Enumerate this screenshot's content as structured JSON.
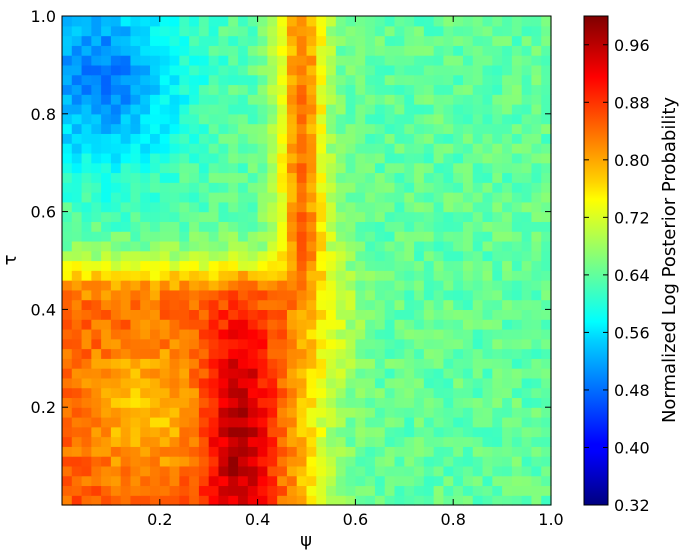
{
  "chart_data": {
    "type": "heatmap",
    "title": "",
    "xlabel": "ψ",
    "ylabel": "τ",
    "xlim": [
      0.0,
      1.0
    ],
    "ylim": [
      0.0,
      1.0
    ],
    "x_ticks": [
      "0.2",
      "0.4",
      "0.6",
      "0.8",
      "1.0"
    ],
    "y_ticks": [
      "0.2",
      "0.4",
      "0.6",
      "0.8",
      "1.0"
    ],
    "grid": false,
    "colormap": "jet",
    "colorbar": {
      "label": "Normalized Log Posterior Probability",
      "range": [
        0.32,
        1.0
      ],
      "ticks": [
        "0.32",
        "0.40",
        "0.48",
        "0.56",
        "0.64",
        "0.72",
        "0.80",
        "0.88",
        "0.96"
      ]
    },
    "grid_resolution": [
      50,
      50
    ],
    "features": [
      {
        "region": "psi 0.0-0.5, tau 0.0-0.48",
        "approx_value": 0.88
      },
      {
        "region": "psi 0.30-0.42, tau 0.0-0.35 (peak)",
        "approx_value": 1.0
      },
      {
        "region": "psi 0.43-0.55, tau 0.45-1.0 (ridge)",
        "approx_value": 0.82
      },
      {
        "region": "psi 0.0-0.2, tau 0.65-1.0",
        "approx_value": 0.5
      },
      {
        "region": "psi 0.6-1.0, tau 0.0-1.0 (background)",
        "approx_value": 0.64
      }
    ]
  }
}
